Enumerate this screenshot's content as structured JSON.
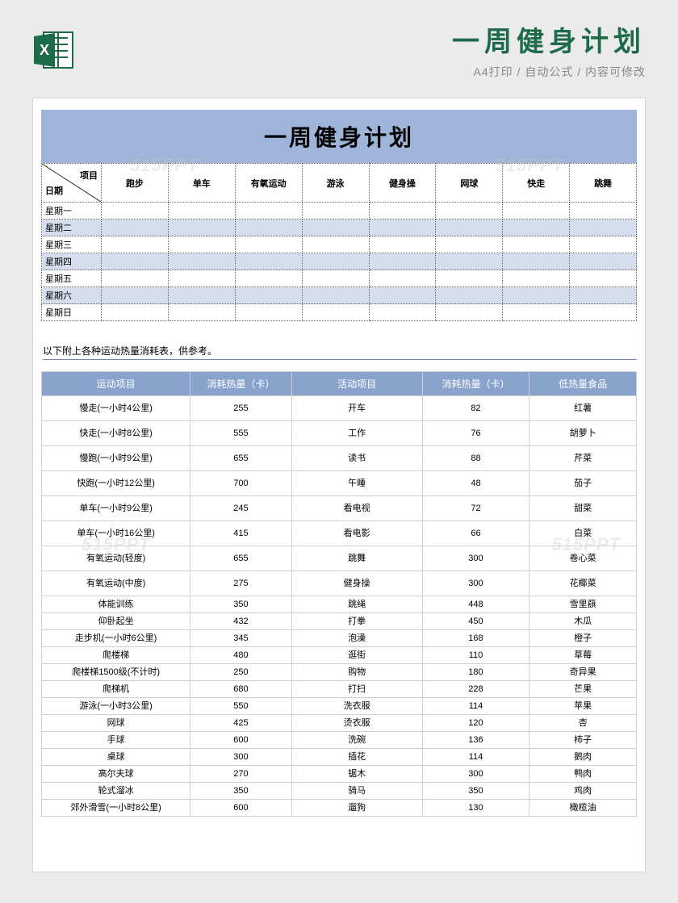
{
  "header": {
    "title": "一周健身计划",
    "subtitle": "A4打印 / 自动公式 / 内容可修改"
  },
  "watermark": "515PPT",
  "sheet": {
    "title": "一周健身计划",
    "diag": {
      "top": "项目",
      "bottom": "日期"
    },
    "columns": [
      "跑步",
      "单车",
      "有氧运动",
      "游泳",
      "健身操",
      "网球",
      "快走",
      "跳舞"
    ],
    "days": [
      "星期一",
      "星期二",
      "星期三",
      "星期四",
      "星期五",
      "星期六",
      "星期日"
    ],
    "note": "以下附上各种运动热量消耗表，供参考。",
    "cal_headers": [
      "运动项目",
      "消耗热量（卡）",
      "活动项目",
      "消耗热量（卡）",
      "低热量食品"
    ],
    "cal_rows": [
      {
        "tall": true,
        "c": [
          "慢走(一小时4公里)",
          "255",
          "开车",
          "82",
          "红薯"
        ]
      },
      {
        "tall": true,
        "c": [
          "快走(一小时8公里)",
          "555",
          "工作",
          "76",
          "胡萝卜"
        ]
      },
      {
        "tall": true,
        "c": [
          "慢跑(一小时9公里)",
          "655",
          "读书",
          "88",
          "芹菜"
        ]
      },
      {
        "tall": true,
        "c": [
          "快跑(一小时12公里)",
          "700",
          "午睡",
          "48",
          "茄子"
        ]
      },
      {
        "tall": true,
        "c": [
          "单车(一小时9公里)",
          "245",
          "看电视",
          "72",
          "甜菜"
        ]
      },
      {
        "tall": true,
        "c": [
          "单车(一小时16公里)",
          "415",
          "看电影",
          "66",
          "白菜"
        ]
      },
      {
        "tall": true,
        "c": [
          "有氧运动(轻度)",
          "655",
          "跳舞",
          "300",
          "卷心菜"
        ]
      },
      {
        "tall": true,
        "c": [
          "有氧运动(中度)",
          "275",
          "健身操",
          "300",
          "花椰菜"
        ]
      },
      {
        "tall": false,
        "c": [
          "体能训练",
          "350",
          "跳绳",
          "448",
          "雪里蕻"
        ]
      },
      {
        "tall": false,
        "c": [
          "仰卧起坐",
          "432",
          "打拳",
          "450",
          "木瓜"
        ]
      },
      {
        "tall": false,
        "c": [
          "走步机(一小时6公里)",
          "345",
          "泡澡",
          "168",
          "橙子"
        ]
      },
      {
        "tall": false,
        "c": [
          "爬楼梯",
          "480",
          "逛街",
          "110",
          "草莓"
        ]
      },
      {
        "tall": false,
        "c": [
          "爬楼梯1500级(不计时)",
          "250",
          "购物",
          "180",
          "奇异果"
        ]
      },
      {
        "tall": false,
        "c": [
          "爬梯机",
          "680",
          "打扫",
          "228",
          "芒果"
        ]
      },
      {
        "tall": false,
        "c": [
          "游泳(一小时3公里)",
          "550",
          "洗衣服",
          "114",
          "苹果"
        ]
      },
      {
        "tall": false,
        "c": [
          "网球",
          "425",
          "烫衣服",
          "120",
          "杏"
        ]
      },
      {
        "tall": false,
        "c": [
          "手球",
          "600",
          "洗碗",
          "136",
          "柿子"
        ]
      },
      {
        "tall": false,
        "c": [
          "桌球",
          "300",
          "插花",
          "114",
          "鹅肉"
        ]
      },
      {
        "tall": false,
        "c": [
          "高尔夫球",
          "270",
          "锯木",
          "300",
          "鸭肉"
        ]
      },
      {
        "tall": false,
        "c": [
          "轮式溜冰",
          "350",
          "骑马",
          "350",
          "鸡肉"
        ]
      },
      {
        "tall": false,
        "c": [
          "郊外滑雪(一小时8公里)",
          "600",
          "遛狗",
          "130",
          "橄榄油"
        ]
      }
    ]
  },
  "colors": {
    "header_green": "#1d6b4a",
    "bar_blue": "#9eb4d9",
    "row_alt": "#d6deee",
    "cal_header": "#8aa3cc",
    "page_bg": "#ebebeb"
  }
}
